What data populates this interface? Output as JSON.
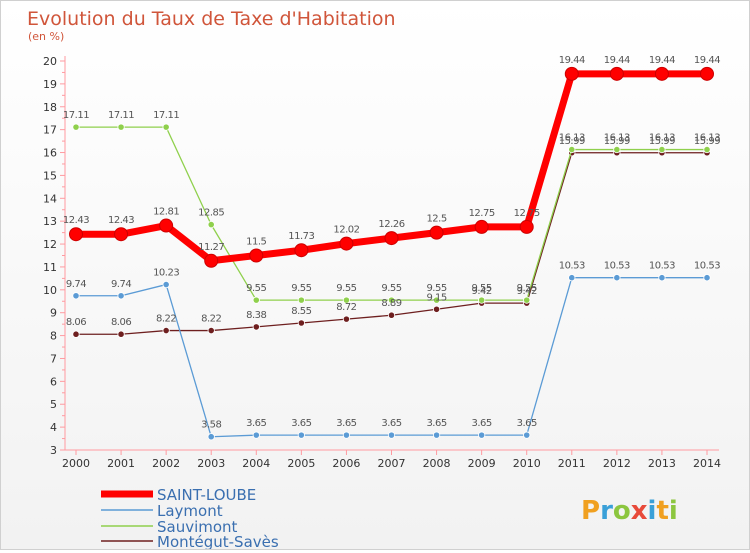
{
  "colors": {
    "axis": "#ff9aa0",
    "grid": "#e8e8e8"
  },
  "logo": {
    "text": "Proxiti"
  },
  "chart_data": {
    "type": "line",
    "title": "Evolution du Taux de Taxe d'Habitation",
    "subtitle": "(en %)",
    "x": [
      "2000",
      "2001",
      "2002",
      "2003",
      "2004",
      "2005",
      "2006",
      "2007",
      "2008",
      "2009",
      "2010",
      "2011",
      "2012",
      "2013",
      "2014"
    ],
    "ylim": [
      3,
      20
    ],
    "yticks": [
      "3",
      "4",
      "5",
      "6",
      "7",
      "8",
      "9",
      "10",
      "11",
      "12",
      "13",
      "14",
      "15",
      "16",
      "17",
      "18",
      "19",
      "20"
    ],
    "grid": false,
    "legend_position": "bottom-left",
    "series": [
      {
        "name": "SAINT-LOUBE",
        "color": "#ff0000",
        "values": [
          12.43,
          12.43,
          12.81,
          11.27,
          11.5,
          11.73,
          12.02,
          12.26,
          12.5,
          12.75,
          12.75,
          19.44,
          19.44,
          19.44,
          19.44
        ],
        "labels": [
          "12.43",
          "12.43",
          "12.81",
          "11.27",
          "11.5",
          "11.73",
          "12.02",
          "12.26",
          "12.5",
          "12.75",
          "12.75",
          "19.44",
          "19.44",
          "19.44",
          "19.44"
        ]
      },
      {
        "name": "Laymont",
        "color": "#5b9bd5",
        "values": [
          9.74,
          9.74,
          10.23,
          3.58,
          3.65,
          3.65,
          3.65,
          3.65,
          3.65,
          3.65,
          3.65,
          10.53,
          10.53,
          10.53,
          10.53
        ],
        "labels": [
          "9.74",
          "9.74",
          "10.23",
          "3.58",
          "3.65",
          "3.65",
          "3.65",
          "3.65",
          "3.65",
          "3.65",
          "3.65",
          "10.53",
          "10.53",
          "10.53",
          "10.53"
        ]
      },
      {
        "name": "Sauvimont",
        "color": "#8fd04c",
        "values": [
          17.11,
          17.11,
          17.11,
          12.85,
          9.55,
          9.55,
          9.55,
          9.55,
          9.55,
          9.55,
          9.55,
          16.13,
          16.13,
          16.13,
          16.13
        ],
        "labels": [
          "17.11",
          "17.11",
          "17.11",
          "12.85",
          "9.55",
          "9.55",
          "9.55",
          "9.55",
          "9.55",
          "9.55",
          "9.55",
          "16.13",
          "16.13",
          "16.13",
          "16.13"
        ]
      },
      {
        "name": "Montégut-Savès",
        "color": "#6e1f1f",
        "values": [
          8.06,
          8.06,
          8.22,
          8.22,
          8.38,
          8.55,
          8.72,
          8.89,
          9.15,
          9.42,
          9.42,
          15.99,
          15.99,
          15.99,
          15.99
        ],
        "labels": [
          "8.06",
          "8.06",
          "8.22",
          "8.22",
          "8.38",
          "8.55",
          "8.72",
          "8.89",
          "9.15",
          "9.42",
          "9.42",
          "15.99",
          "15.99",
          "15.99",
          "15.99"
        ]
      }
    ]
  }
}
